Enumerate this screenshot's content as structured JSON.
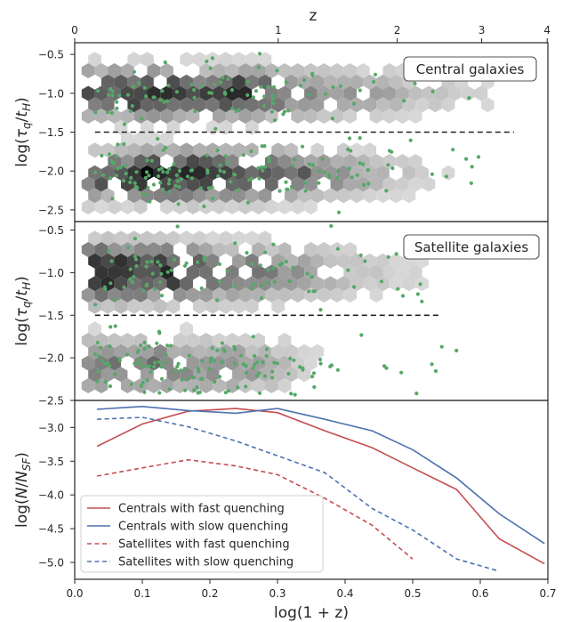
{
  "chart_data": [
    {
      "type": "hexbin",
      "panel": "top",
      "annotation": "Central galaxies",
      "top_axis": {
        "label": "z",
        "ticks": [
          0,
          1,
          2,
          3,
          4
        ],
        "tick_labels": [
          "0",
          "1",
          "2",
          "3",
          "4"
        ]
      },
      "ylabel": "log(τ_q/t_H)",
      "ylabel_parts": {
        "prefix": "log(",
        "tau": "τ",
        "q": "q",
        "slash": "/",
        "t": "t",
        "H": "H",
        "suffix": ")"
      },
      "ylim": [
        -2.65,
        -0.35
      ],
      "yticks": [
        -0.5,
        -1.0,
        -1.5,
        -2.0,
        -2.5
      ],
      "ytick_labels": [
        "−0.5",
        "−1.0",
        "−1.5",
        "−2.0",
        "−2.5"
      ],
      "xlim": [
        0,
        0.7
      ],
      "threshold_line": {
        "y": -1.5,
        "x_range": [
          0.03,
          0.65
        ],
        "style": "dashed"
      },
      "hex_density": {
        "x_bins": [
          0.05,
          0.1,
          0.15,
          0.2,
          0.25,
          0.3,
          0.35,
          0.4,
          0.45,
          0.5,
          0.55,
          0.6,
          0.65
        ],
        "upper_branch": {
          "center_y": -1.0,
          "relative_counts": [
            0.7,
            0.85,
            0.75,
            0.65,
            0.8,
            0.55,
            0.45,
            0.35,
            0.3,
            0.2,
            0.15,
            0.1,
            0.05
          ]
        },
        "lower_branch": {
          "center_y": -2.05,
          "relative_counts": [
            0.65,
            0.8,
            0.9,
            0.85,
            0.75,
            0.65,
            0.5,
            0.35,
            0.25,
            0.15,
            0.08,
            0.05,
            0.0
          ]
        }
      },
      "points_color": "#55a868"
    },
    {
      "type": "hexbin",
      "panel": "middle",
      "annotation": "Satellite galaxies",
      "ylabel": "log(τ_q/t_H)",
      "ylabel_parts": {
        "prefix": "log(",
        "tau": "τ",
        "q": "q",
        "slash": "/",
        "t": "t",
        "H": "H",
        "suffix": ")"
      },
      "ylim": [
        -2.5,
        -0.4
      ],
      "yticks": [
        -0.5,
        -1.0,
        -1.5,
        -2.0,
        -2.5
      ],
      "ytick_labels": [
        "−0.5",
        "−1.0",
        "−1.5",
        "−2.0",
        "−2.5"
      ],
      "xlim": [
        0,
        0.7
      ],
      "threshold_line": {
        "y": -1.5,
        "x_range": [
          0.03,
          0.54
        ],
        "style": "dashed"
      },
      "hex_density": {
        "x_bins": [
          0.05,
          0.1,
          0.15,
          0.2,
          0.25,
          0.3,
          0.35,
          0.4,
          0.45,
          0.5,
          0.55,
          0.6
        ],
        "upper_branch": {
          "center_y": -1.0,
          "relative_counts": [
            0.9,
            0.85,
            0.75,
            0.6,
            0.5,
            0.4,
            0.3,
            0.2,
            0.15,
            0.1,
            0.05,
            0.05
          ]
        },
        "lower_branch": {
          "center_y": -2.1,
          "relative_counts": [
            0.45,
            0.5,
            0.45,
            0.4,
            0.35,
            0.25,
            0.1,
            0.05,
            0.0,
            0.0,
            0.0,
            0.0
          ]
        }
      },
      "points_color": "#55a868"
    },
    {
      "type": "line",
      "panel": "bottom",
      "xlabel": "log(1 + z)",
      "ylabel": "log(N/N_SF)",
      "ylabel_parts": {
        "prefix": "log(",
        "N1": "N",
        "slash": "/",
        "N2": "N",
        "sub": "SF",
        "suffix": ")"
      },
      "xlim": [
        0.0,
        0.7
      ],
      "ylim": [
        -5.25,
        -2.6
      ],
      "xticks": [
        0.0,
        0.1,
        0.2,
        0.3,
        0.4,
        0.5,
        0.6,
        0.7
      ],
      "xtick_labels": [
        "0.0",
        "0.1",
        "0.2",
        "0.3",
        "0.4",
        "0.5",
        "0.6",
        "0.7"
      ],
      "yticks": [
        -3.0,
        -3.5,
        -4.0,
        -4.5,
        -5.0
      ],
      "ytick_labels": [
        "−3.0",
        "−3.5",
        "−4.0",
        "−4.5",
        "−5.0"
      ],
      "legend_position": "lower-left",
      "series": [
        {
          "name": "Centrals with fast quenching",
          "color": "#c44e52",
          "style": "solid",
          "x": [
            0.033,
            0.1,
            0.168,
            0.238,
            0.3,
            0.37,
            0.44,
            0.5,
            0.565,
            0.628,
            0.695
          ],
          "values": [
            -3.28,
            -2.95,
            -2.76,
            -2.72,
            -2.78,
            -3.05,
            -3.3,
            -3.6,
            -3.92,
            -4.65,
            -5.02
          ]
        },
        {
          "name": "Centrals with slow quenching",
          "color": "#4c72b0",
          "style": "solid",
          "x": [
            0.033,
            0.1,
            0.168,
            0.238,
            0.3,
            0.37,
            0.44,
            0.5,
            0.565,
            0.628,
            0.695
          ],
          "values": [
            -2.73,
            -2.69,
            -2.75,
            -2.79,
            -2.72,
            -2.88,
            -3.05,
            -3.33,
            -3.75,
            -4.28,
            -4.72
          ]
        },
        {
          "name": "Satellites with fast quenching",
          "color": "#c44e52",
          "style": "dashed",
          "x": [
            0.033,
            0.1,
            0.168,
            0.238,
            0.3,
            0.37,
            0.44,
            0.5
          ],
          "values": [
            -3.72,
            -3.6,
            -3.48,
            -3.57,
            -3.7,
            -4.05,
            -4.45,
            -4.95
          ]
        },
        {
          "name": "Satellites with slow quenching",
          "color": "#4c72b0",
          "style": "dashed",
          "x": [
            0.033,
            0.1,
            0.168,
            0.238,
            0.3,
            0.37,
            0.44,
            0.5,
            0.565,
            0.628
          ],
          "values": [
            -2.88,
            -2.85,
            -2.99,
            -3.2,
            -3.42,
            -3.67,
            -4.2,
            -4.52,
            -4.95,
            -5.13
          ]
        }
      ]
    }
  ]
}
